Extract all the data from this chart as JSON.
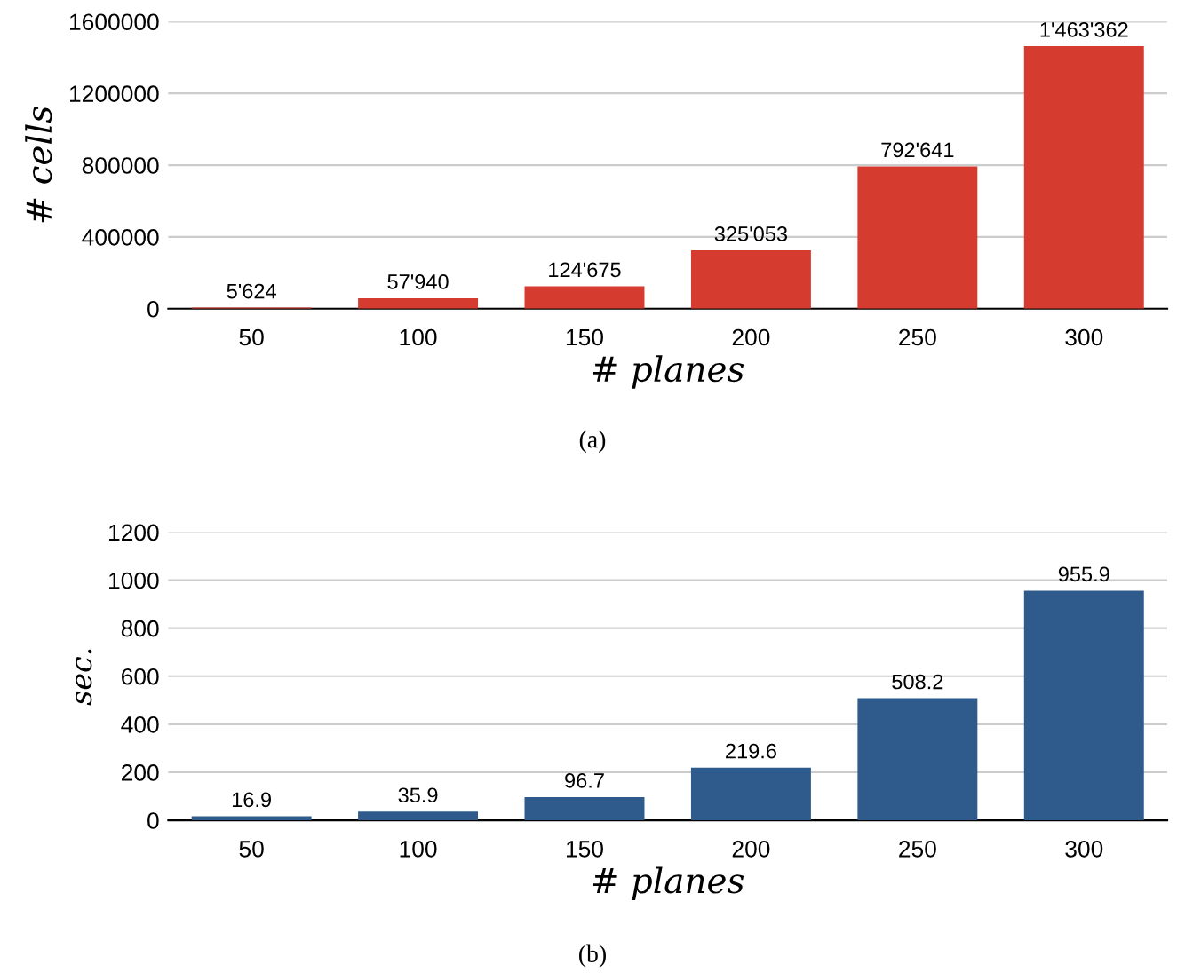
{
  "chart_data": [
    {
      "type": "bar",
      "categories": [
        "50",
        "100",
        "150",
        "200",
        "250",
        "300"
      ],
      "xlabel": "# planes",
      "ylabel": "# cells",
      "color": "#d63b2f",
      "values": [
        5624,
        57940,
        124675,
        325053,
        792641,
        1463362
      ],
      "value_labels": [
        "5'624",
        "57'940",
        "124'675",
        "325'053",
        "792'641",
        "1'463'362"
      ],
      "ylim": [
        0,
        1600000
      ],
      "yticks": [
        0,
        400000,
        800000,
        1200000,
        1600000
      ],
      "grid": "y",
      "annotations": [
        "(a)"
      ]
    },
    {
      "type": "bar",
      "categories": [
        "50",
        "100",
        "150",
        "200",
        "250",
        "300"
      ],
      "xlabel": "# planes",
      "ylabel": "sec.",
      "color": "#2e5a8c",
      "values": [
        16.9,
        35.9,
        96.7,
        219.6,
        508.2,
        955.9
      ],
      "data_labels": true,
      "ylim": [
        0,
        1200
      ],
      "yticks": [
        0,
        200,
        400,
        600,
        800,
        1000,
        1200
      ],
      "grid": "y",
      "annotations": [
        "(b)"
      ]
    }
  ]
}
